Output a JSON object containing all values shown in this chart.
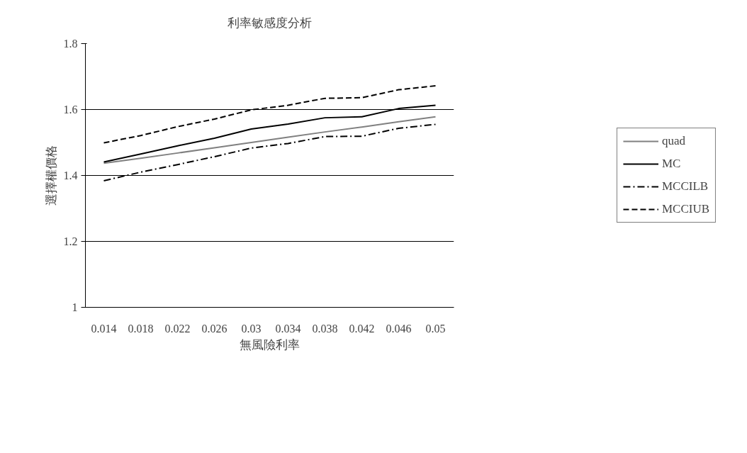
{
  "chart_data": {
    "type": "line",
    "title": "利率敏感度分析",
    "xlabel": "無風險利率",
    "ylabel": "選擇權價格",
    "categories": [
      "0.014",
      "0.018",
      "0.022",
      "0.026",
      "0.03",
      "0.034",
      "0.038",
      "0.042",
      "0.046",
      "0.05"
    ],
    "series": [
      {
        "name": "quad",
        "color": "#808080",
        "line_style": "solid",
        "values": [
          1.437,
          1.452,
          1.468,
          1.484,
          1.5,
          1.516,
          1.532,
          1.547,
          1.563,
          1.578
        ]
      },
      {
        "name": "MC",
        "color": "#000000",
        "line_style": "solid",
        "values": [
          1.441,
          1.465,
          1.49,
          1.513,
          1.541,
          1.556,
          1.575,
          1.578,
          1.603,
          1.613
        ]
      },
      {
        "name": "MCCILB",
        "color": "#000000",
        "line_style": "dashdot",
        "values": [
          1.384,
          1.41,
          1.433,
          1.457,
          1.483,
          1.497,
          1.518,
          1.519,
          1.543,
          1.555
        ]
      },
      {
        "name": "MCCIUB",
        "color": "#000000",
        "line_style": "dashed",
        "values": [
          1.499,
          1.521,
          1.548,
          1.571,
          1.599,
          1.613,
          1.634,
          1.636,
          1.66,
          1.672
        ]
      }
    ],
    "ylim": [
      1,
      1.8
    ],
    "yticks": [
      1,
      1.2,
      1.4,
      1.6,
      1.8
    ],
    "grid": "y",
    "legend": "right",
    "marker": "none"
  }
}
